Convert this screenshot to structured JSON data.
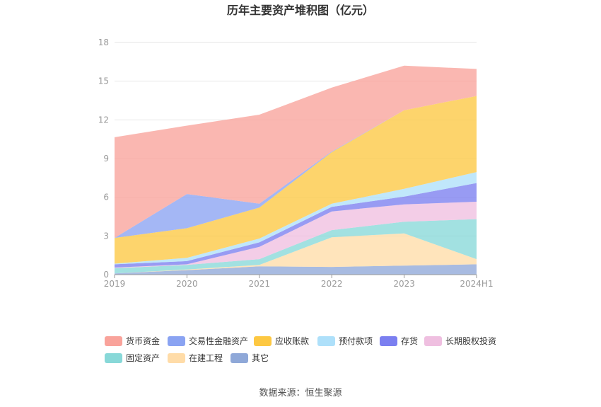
{
  "chart_data": {
    "type": "area",
    "stacked": true,
    "title": "历年主要资产堆积图（亿元）",
    "xlabel": "",
    "ylabel": "",
    "categories": [
      "2019",
      "2020",
      "2021",
      "2022",
      "2023",
      "2024H1"
    ],
    "ylim": [
      0,
      18
    ],
    "yticks": [
      0,
      3,
      6,
      9,
      12,
      15,
      18
    ],
    "grid": true,
    "legend_position": "bottom",
    "series": [
      {
        "name": "其它",
        "color": "#8fa8d8",
        "values": [
          0.1,
          0.35,
          0.65,
          0.6,
          0.7,
          0.8
        ]
      },
      {
        "name": "在建工程",
        "color": "#ffdca8",
        "values": [
          0.0,
          0.05,
          0.1,
          2.3,
          2.5,
          0.4
        ]
      },
      {
        "name": "固定资产",
        "color": "#88d8d8",
        "values": [
          0.4,
          0.35,
          0.45,
          0.55,
          0.9,
          3.1
        ]
      },
      {
        "name": "长期股权投资",
        "color": "#efbfe0",
        "values": [
          0.05,
          0.05,
          0.95,
          1.45,
          1.35,
          1.35
        ]
      },
      {
        "name": "存货",
        "color": "#7b7ff0",
        "values": [
          0.25,
          0.25,
          0.35,
          0.35,
          0.6,
          1.45
        ]
      },
      {
        "name": "预付款项",
        "color": "#aee0fa",
        "values": [
          0.05,
          0.25,
          0.3,
          0.25,
          0.6,
          0.85
        ]
      },
      {
        "name": "应收账款",
        "color": "#fdc842",
        "values": [
          2.0,
          2.3,
          2.4,
          4.0,
          6.1,
          5.9
        ]
      },
      {
        "name": "交易性金融资产",
        "color": "#8aa3f2",
        "values": [
          0.0,
          2.65,
          0.3,
          0.05,
          0.0,
          0.0
        ]
      },
      {
        "name": "货币资金",
        "color": "#f9a39b",
        "values": [
          7.8,
          5.3,
          6.9,
          4.95,
          3.45,
          2.1
        ]
      }
    ]
  },
  "legend_order": [
    "货币资金",
    "交易性金融资产",
    "应收账款",
    "预付款项",
    "存货",
    "长期股权投资",
    "固定资产",
    "在建工程",
    "其它"
  ],
  "source_text": "数据来源：恒生聚源"
}
